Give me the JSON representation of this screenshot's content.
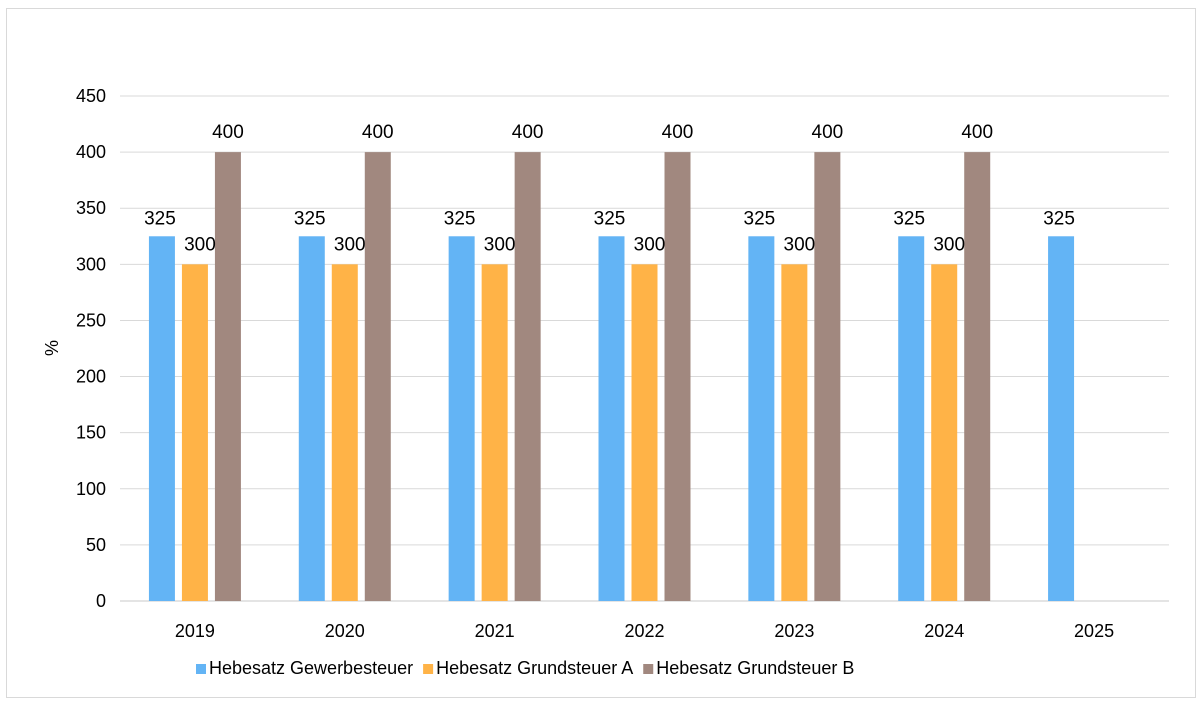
{
  "chart_data": {
    "type": "bar",
    "title": "",
    "xlabel": "",
    "ylabel": "%",
    "ylim": [
      0,
      450
    ],
    "y_ticks": [
      0,
      50,
      100,
      150,
      200,
      250,
      300,
      350,
      400,
      450
    ],
    "grid": true,
    "legend_position": "bottom",
    "categories": [
      "2019",
      "2020",
      "2021",
      "2022",
      "2023",
      "2024",
      "2025"
    ],
    "series": [
      {
        "name": "Hebesatz Gewerbesteuer",
        "color": "#63b4f5",
        "values": [
          325,
          325,
          325,
          325,
          325,
          325,
          325
        ]
      },
      {
        "name": "Hebesatz Grundsteuer A",
        "color": "#ffb347",
        "values": [
          300,
          300,
          300,
          300,
          300,
          300,
          null
        ]
      },
      {
        "name": "Hebesatz Grundsteuer B",
        "color": "#a1887f",
        "values": [
          400,
          400,
          400,
          400,
          400,
          400,
          null
        ]
      }
    ]
  }
}
